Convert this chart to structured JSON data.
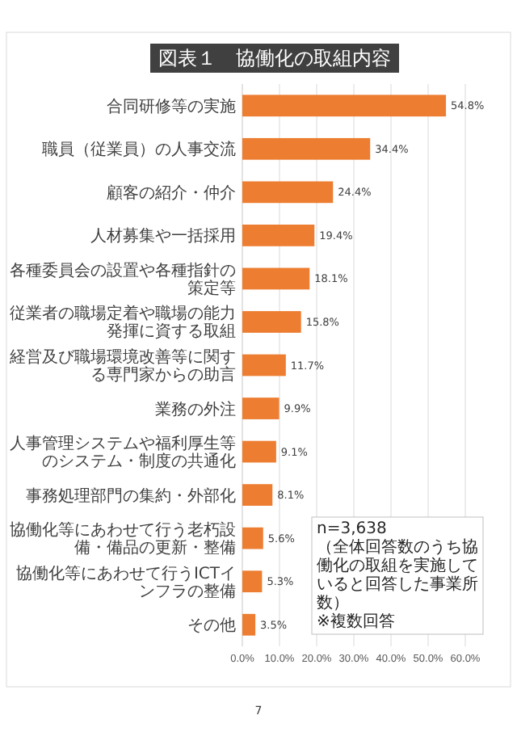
{
  "chart_data": {
    "type": "bar",
    "orientation": "horizontal",
    "title": "図表１　協働化の取組内容",
    "categories": [
      "合同研修等の実施",
      "職員（従業員）の人事交流",
      "顧客の紹介・仲介",
      "人材募集や一括採用",
      "各種委員会の設置や各種指針の策定等",
      "従業者の職場定着や職場の能力発揮に資する取組",
      "経営及び職場環境改善等に関する専門家からの助言",
      "業務の外注",
      "人事管理システムや福利厚生等のシステム・制度の共通化",
      "事務処理部門の集約・外部化",
      "協働化等にあわせて行う老朽設備・備品の更新・整備",
      "協働化等にあわせて行うICTインフラの整備",
      "その他"
    ],
    "values": [
      54.8,
      34.4,
      24.4,
      19.4,
      18.1,
      15.8,
      11.7,
      9.9,
      9.1,
      8.1,
      5.6,
      5.3,
      3.5
    ],
    "value_labels": [
      "54.8%",
      "34.4%",
      "24.4%",
      "19.4%",
      "18.1%",
      "15.8%",
      "11.7%",
      "9.9%",
      "9.1%",
      "8.1%",
      "5.6%",
      "5.3%",
      "3.5%"
    ],
    "color": "#ed7d31",
    "xlim": [
      0,
      60
    ],
    "xticks": [
      {
        "value": 0,
        "label": "0.0%"
      },
      {
        "value": 10,
        "label": "10.0%"
      },
      {
        "value": 20,
        "label": "20.0%"
      },
      {
        "value": 30,
        "label": "30.0%"
      },
      {
        "value": 40,
        "label": "40.0%"
      },
      {
        "value": 50,
        "label": "50.0%"
      },
      {
        "value": 60,
        "label": "60.0%"
      }
    ],
    "grid": "x",
    "annotations": [
      "n=3,638\n（全体回答数のうち協働化の取組を実施していると回答した事業所数）\n※複数回答",
      "7"
    ]
  }
}
